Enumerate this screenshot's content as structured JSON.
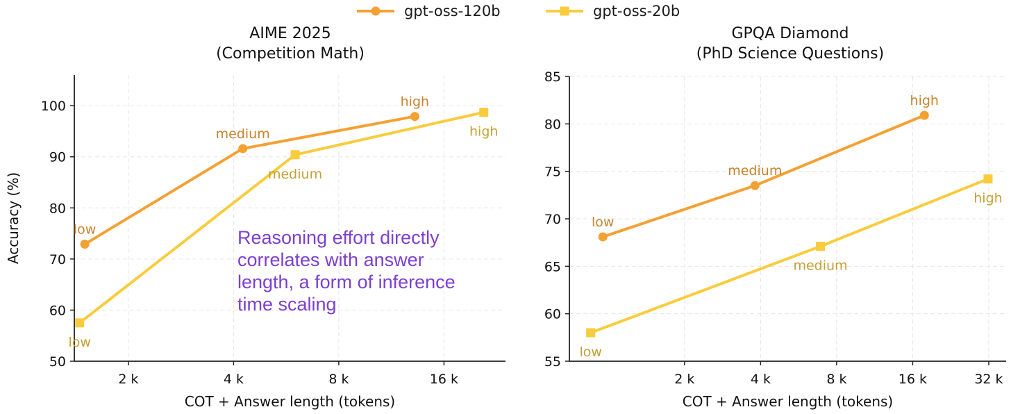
{
  "legend": [
    {
      "label": "gpt-oss-120b",
      "color": "#f5a033",
      "marker": "circle"
    },
    {
      "label": "gpt-oss-20b",
      "color": "#f8cc3c",
      "marker": "square"
    }
  ],
  "annotation": "Reasoning effort directly\ncorrelates with answer\nlength, a form of inference\ntime scaling",
  "chart_data": [
    {
      "type": "line",
      "title": "AIME 2025",
      "subtitle": "(Competition Math)",
      "xlabel": "COT + Answer length (tokens)",
      "ylabel": "Accuracy (%)",
      "x_scale": "log2",
      "xlim": [
        1400,
        24000
      ],
      "ylim": [
        50,
        106
      ],
      "xticks": [
        {
          "value": 2000,
          "label": "2 k"
        },
        {
          "value": 4000,
          "label": "4 k"
        },
        {
          "value": 8000,
          "label": "8 k"
        },
        {
          "value": 16000,
          "label": "16 k"
        }
      ],
      "yticks": [
        {
          "value": 50,
          "label": "50"
        },
        {
          "value": 60,
          "label": "60"
        },
        {
          "value": 70,
          "label": "70"
        },
        {
          "value": 80,
          "label": "80"
        },
        {
          "value": 90,
          "label": "90"
        },
        {
          "value": 100,
          "label": "100"
        }
      ],
      "grid": true,
      "series": [
        {
          "name": "gpt-oss-120b",
          "color": "#f5a033",
          "marker": "circle",
          "label_color": "#c9822c",
          "points": [
            {
              "x": 1500,
              "y": 72.9,
              "label": "low",
              "label_pos": "above"
            },
            {
              "x": 4250,
              "y": 91.6,
              "label": "medium",
              "label_pos": "above"
            },
            {
              "x": 13200,
              "y": 97.9,
              "label": "high",
              "label_pos": "above"
            }
          ]
        },
        {
          "name": "gpt-oss-20b",
          "color": "#f8cc3c",
          "marker": "square",
          "label_color": "#c4a034",
          "points": [
            {
              "x": 1450,
              "y": 57.5,
              "label": "low",
              "label_pos": "below"
            },
            {
              "x": 6000,
              "y": 90.4,
              "label": "medium",
              "label_pos": "below"
            },
            {
              "x": 20800,
              "y": 98.7,
              "label": "high",
              "label_pos": "below"
            }
          ]
        }
      ]
    },
    {
      "type": "line",
      "title": "GPQA Diamond",
      "subtitle": "(PhD Science Questions)",
      "xlabel": "COT + Answer length (tokens)",
      "ylabel": "",
      "x_scale": "log2",
      "xlim": [
        700,
        37500
      ],
      "ylim": [
        55,
        85
      ],
      "xticks": [
        {
          "value": 2000,
          "label": "2 k"
        },
        {
          "value": 4000,
          "label": "4 k"
        },
        {
          "value": 8000,
          "label": "8 k"
        },
        {
          "value": 16000,
          "label": "16 k"
        },
        {
          "value": 32000,
          "label": "32 k"
        }
      ],
      "yticks": [
        {
          "value": 55,
          "label": "55"
        },
        {
          "value": 60,
          "label": "60"
        },
        {
          "value": 65,
          "label": "65"
        },
        {
          "value": 70,
          "label": "70"
        },
        {
          "value": 75,
          "label": "75"
        },
        {
          "value": 80,
          "label": "80"
        },
        {
          "value": 85,
          "label": "85"
        }
      ],
      "grid": true,
      "series": [
        {
          "name": "gpt-oss-120b",
          "color": "#f5a033",
          "marker": "circle",
          "label_color": "#c9822c",
          "points": [
            {
              "x": 950,
              "y": 68.1,
              "label": "low",
              "label_pos": "above"
            },
            {
              "x": 3800,
              "y": 73.5,
              "label": "medium",
              "label_pos": "above"
            },
            {
              "x": 17800,
              "y": 80.9,
              "label": "high",
              "label_pos": "above"
            }
          ]
        },
        {
          "name": "gpt-oss-20b",
          "color": "#f8cc3c",
          "marker": "square",
          "label_color": "#c4a034",
          "points": [
            {
              "x": 850,
              "y": 58.0,
              "label": "low",
              "label_pos": "below"
            },
            {
              "x": 6900,
              "y": 67.1,
              "label": "medium",
              "label_pos": "below"
            },
            {
              "x": 31800,
              "y": 74.2,
              "label": "high",
              "label_pos": "below"
            }
          ]
        }
      ]
    }
  ]
}
